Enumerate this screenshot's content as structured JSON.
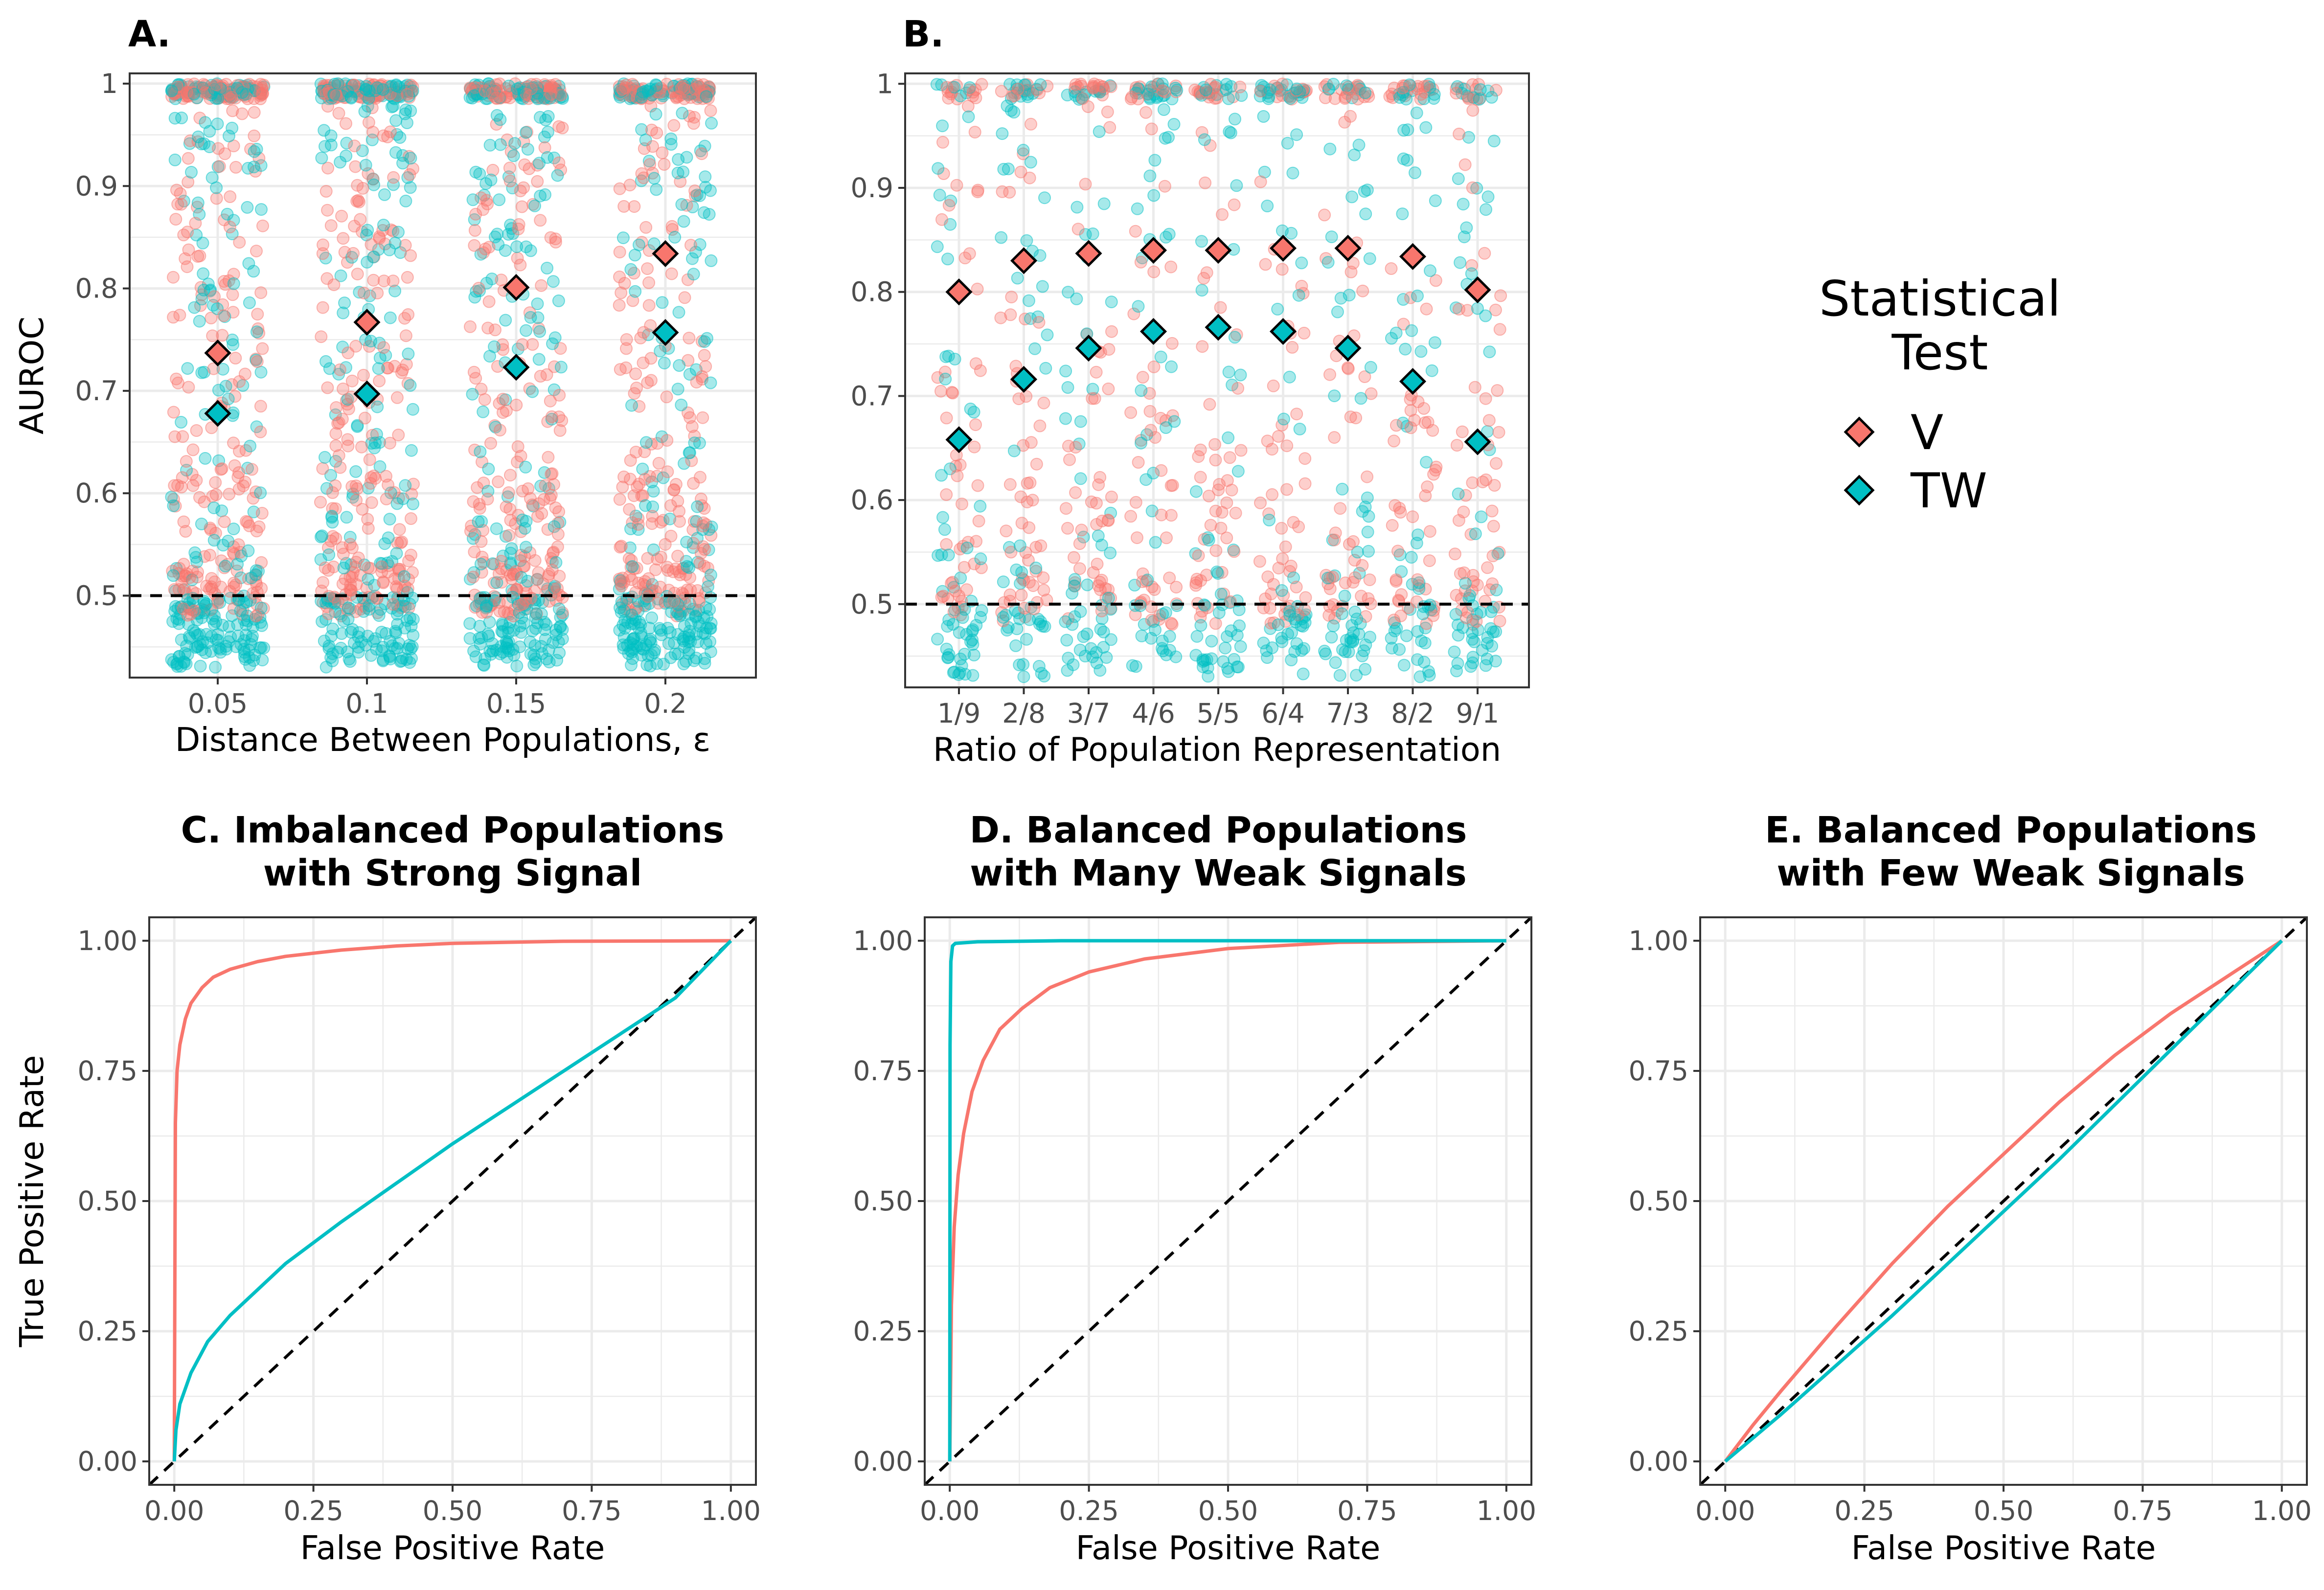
{
  "colors": {
    "V": "#F8766D",
    "TW": "#00BFC4",
    "grid": "#ebebeb",
    "frame": "#333333"
  },
  "legend": {
    "title_line1": "Statistical",
    "title_line2": "Test",
    "items": [
      "V",
      "TW"
    ]
  },
  "chart_data": [
    {
      "id": "A",
      "type": "scatter",
      "panel_title": "A.",
      "xlabel": "Distance Between Populations, ε",
      "ylabel": "AUROC",
      "categories": [
        "0.05",
        "0.1",
        "0.15",
        "0.2"
      ],
      "y_ticks": [
        "0.5",
        "0.6",
        "0.7",
        "0.8",
        "0.9",
        "1"
      ],
      "ylim": [
        0.42,
        1.01
      ],
      "reference_line": 0.5,
      "series": [
        {
          "name": "V",
          "means": [
            0.737,
            0.767,
            0.801,
            0.834
          ]
        },
        {
          "name": "TW",
          "means": [
            0.678,
            0.697,
            0.723,
            0.757
          ]
        }
      ]
    },
    {
      "id": "B",
      "type": "scatter",
      "panel_title": "B.",
      "xlabel": "Ratio of Population Representation",
      "ylabel": "",
      "categories": [
        "1/9",
        "2/8",
        "3/7",
        "4/6",
        "5/5",
        "6/4",
        "7/3",
        "8/2",
        "9/1"
      ],
      "y_ticks": [
        "0.5",
        "0.6",
        "0.7",
        "0.8",
        "0.9",
        "1"
      ],
      "ylim": [
        0.42,
        1.01
      ],
      "reference_line": 0.5,
      "series": [
        {
          "name": "V",
          "means": [
            0.8,
            0.83,
            0.837,
            0.84,
            0.84,
            0.842,
            0.842,
            0.834,
            0.802
          ]
        },
        {
          "name": "TW",
          "means": [
            0.658,
            0.716,
            0.746,
            0.762,
            0.766,
            0.762,
            0.746,
            0.714,
            0.656
          ]
        }
      ]
    },
    {
      "id": "C",
      "type": "line",
      "title_line1": "C. Imbalanced Populations",
      "title_line2": "with Strong Signal",
      "xlabel": "False Positive Rate",
      "ylabel": "True Positive Rate",
      "x_ticks": [
        "0.00",
        "0.25",
        "0.50",
        "0.75",
        "1.00"
      ],
      "y_ticks": [
        "0.00",
        "0.25",
        "0.50",
        "0.75",
        "1.00"
      ],
      "xlim": [
        0,
        1
      ],
      "ylim": [
        0,
        1
      ],
      "series": [
        {
          "name": "V",
          "x": [
            0,
            0.002,
            0.005,
            0.01,
            0.02,
            0.03,
            0.05,
            0.07,
            0.1,
            0.15,
            0.2,
            0.3,
            0.4,
            0.5,
            0.7,
            1.0
          ],
          "y": [
            0,
            0.65,
            0.75,
            0.8,
            0.85,
            0.88,
            0.91,
            0.93,
            0.945,
            0.96,
            0.97,
            0.982,
            0.99,
            0.995,
            0.999,
            1.0
          ]
        },
        {
          "name": "TW",
          "x": [
            0,
            0.003,
            0.01,
            0.03,
            0.06,
            0.1,
            0.15,
            0.2,
            0.3,
            0.4,
            0.5,
            0.6,
            0.7,
            0.8,
            0.9,
            1.0
          ],
          "y": [
            0,
            0.06,
            0.11,
            0.17,
            0.23,
            0.28,
            0.33,
            0.38,
            0.46,
            0.535,
            0.61,
            0.68,
            0.75,
            0.82,
            0.89,
            1.0
          ]
        }
      ]
    },
    {
      "id": "D",
      "type": "line",
      "title_line1": "D. Balanced Populations",
      "title_line2": "with Many Weak Signals",
      "xlabel": "False Positive Rate",
      "ylabel": "",
      "x_ticks": [
        "0.00",
        "0.25",
        "0.50",
        "0.75",
        "1.00"
      ],
      "y_ticks": [
        "0.00",
        "0.25",
        "0.50",
        "0.75",
        "1.00"
      ],
      "xlim": [
        0,
        1
      ],
      "ylim": [
        0,
        1
      ],
      "series": [
        {
          "name": "V",
          "x": [
            0,
            0.003,
            0.008,
            0.015,
            0.025,
            0.04,
            0.06,
            0.09,
            0.13,
            0.18,
            0.25,
            0.35,
            0.5,
            0.7,
            1.0
          ],
          "y": [
            0,
            0.3,
            0.45,
            0.55,
            0.63,
            0.71,
            0.77,
            0.83,
            0.87,
            0.91,
            0.94,
            0.965,
            0.985,
            0.997,
            1.0
          ]
        },
        {
          "name": "TW",
          "x": [
            0,
            0.0005,
            0.002,
            0.005,
            0.01,
            0.05,
            0.2,
            0.5,
            1.0
          ],
          "y": [
            0,
            0.8,
            0.96,
            0.99,
            0.995,
            0.998,
            1.0,
            1.0,
            1.0
          ]
        }
      ]
    },
    {
      "id": "E",
      "type": "line",
      "title_line1": "E. Balanced Populations",
      "title_line2": "with Few Weak Signals",
      "xlabel": "False Positive Rate",
      "ylabel": "",
      "x_ticks": [
        "0.00",
        "0.25",
        "0.50",
        "0.75",
        "1.00"
      ],
      "y_ticks": [
        "0.00",
        "0.25",
        "0.50",
        "0.75",
        "1.00"
      ],
      "xlim": [
        0,
        1
      ],
      "ylim": [
        0,
        1
      ],
      "series": [
        {
          "name": "V",
          "x": [
            0,
            0.05,
            0.1,
            0.2,
            0.3,
            0.4,
            0.5,
            0.6,
            0.7,
            0.8,
            0.9,
            1.0
          ],
          "y": [
            0,
            0.07,
            0.135,
            0.26,
            0.38,
            0.49,
            0.59,
            0.69,
            0.78,
            0.86,
            0.93,
            1.0
          ]
        },
        {
          "name": "TW",
          "x": [
            0,
            0.1,
            0.2,
            0.3,
            0.4,
            0.5,
            0.6,
            0.7,
            0.8,
            0.9,
            1.0
          ],
          "y": [
            0,
            0.09,
            0.185,
            0.28,
            0.38,
            0.48,
            0.58,
            0.685,
            0.79,
            0.895,
            1.0
          ]
        }
      ]
    }
  ]
}
